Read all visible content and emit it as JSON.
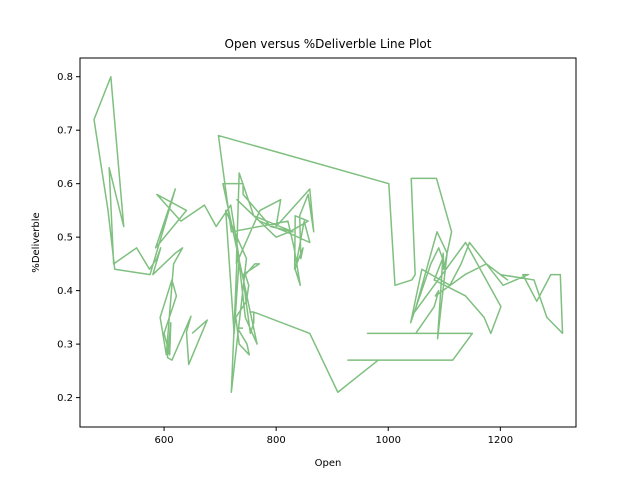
{
  "chart_data": {
    "type": "line",
    "title": "Open versus %Deliverble Line Plot",
    "xlabel": "Open",
    "ylabel": "%Deliverble",
    "xlim": [
      450,
      1335
    ],
    "ylim": [
      0.145,
      0.835
    ],
    "xticks": [
      600,
      800,
      1000,
      1200
    ],
    "yticks": [
      0.2,
      0.3,
      0.4,
      0.5,
      0.6,
      0.7,
      0.8
    ],
    "line_color": "#7fbf7f",
    "grid": false,
    "series": [
      {
        "x": [
          650,
          677,
          644,
          640,
          648,
          614,
          606,
          612,
          610,
          600,
          622,
          614,
          593,
          604,
          617,
          633,
          620,
          580,
          594,
          587,
          574,
          551,
          510,
          502,
          528,
          505,
          475,
          500,
          512,
          575,
          620,
          585,
          640,
          587,
          630,
          672,
          693,
          719,
          734,
          725,
          710,
          730,
          747,
          720,
          731,
          745,
          766,
          705,
          741,
          741,
          790,
          830,
          760,
          734,
          729,
          771,
          808,
          800,
          860,
          867,
          857,
          842,
          844,
          848,
          833,
          834,
          857,
          824,
          800,
          730,
          770,
          818,
          860,
          850,
          834,
          843,
          832,
          821,
          720,
          697,
          1001,
          1012,
          1042,
          1048,
          1041,
          1086,
          1113,
          1099,
          1098,
          1088,
          1105,
          1087,
          1047,
          1138,
          1201,
          1183,
          1171,
          1138,
          1082,
          1097,
          1090,
          1076,
          1040,
          1060,
          1110,
          1130,
          1145,
          1190,
          1205,
          1250,
          1240,
          1265,
          1290,
          1307,
          1311,
          1283,
          1260,
          1200,
          1213,
          1175,
          1137,
          1084,
          1090,
          1082,
          1049,
          1060,
          1040,
          988,
          963,
          1120,
          1150,
          1115,
          992,
          935,
          928,
          992,
          982,
          910,
          860,
          760,
          753,
          760,
          760,
          754,
          745,
          741,
          770,
          762,
          745,
          751,
          747,
          728,
          734,
          752,
          748,
          731,
          738,
          741
        ],
        "y": [
          0.32,
          0.345,
          0.262,
          0.323,
          0.352,
          0.27,
          0.275,
          0.34,
          0.28,
          0.32,
          0.39,
          0.42,
          0.35,
          0.28,
          0.45,
          0.48,
          0.47,
          0.43,
          0.48,
          0.46,
          0.44,
          0.48,
          0.45,
          0.63,
          0.52,
          0.8,
          0.72,
          0.55,
          0.44,
          0.43,
          0.59,
          0.48,
          0.55,
          0.58,
          0.53,
          0.56,
          0.52,
          0.56,
          0.46,
          0.32,
          0.55,
          0.5,
          0.46,
          0.21,
          0.48,
          0.35,
          0.3,
          0.6,
          0.6,
          0.58,
          0.52,
          0.51,
          0.54,
          0.62,
          0.45,
          0.55,
          0.57,
          0.52,
          0.59,
          0.51,
          0.58,
          0.54,
          0.46,
          0.48,
          0.44,
          0.54,
          0.53,
          0.51,
          0.5,
          0.57,
          0.53,
          0.51,
          0.49,
          0.53,
          0.44,
          0.41,
          0.48,
          0.53,
          0.51,
          0.69,
          0.6,
          0.41,
          0.42,
          0.43,
          0.61,
          0.61,
          0.51,
          0.44,
          0.47,
          0.31,
          0.47,
          0.51,
          0.36,
          0.49,
          0.37,
          0.32,
          0.35,
          0.39,
          0.42,
          0.46,
          0.48,
          0.45,
          0.34,
          0.44,
          0.41,
          0.45,
          0.49,
          0.43,
          0.41,
          0.43,
          0.43,
          0.38,
          0.43,
          0.43,
          0.32,
          0.35,
          0.42,
          0.43,
          0.42,
          0.45,
          0.43,
          0.39,
          0.4,
          0.37,
          0.32,
          0.32,
          0.32,
          0.32,
          0.32,
          0.32,
          0.32,
          0.27,
          0.27,
          0.27,
          0.27,
          0.27,
          0.27,
          0.21,
          0.32,
          0.36,
          0.36,
          0.36,
          0.34,
          0.32,
          0.39,
          0.43,
          0.45,
          0.45,
          0.43,
          0.41,
          0.38,
          0.35,
          0.3,
          0.28,
          0.3,
          0.33,
          0.33,
          0.33
        ]
      }
    ]
  }
}
